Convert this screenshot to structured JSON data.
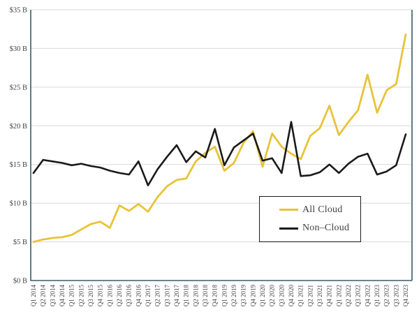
{
  "chart_data": {
    "type": "line",
    "title": "",
    "x": [
      "Q1 2014",
      "Q2 2014",
      "Q3 2014",
      "Q4 2014",
      "Q1 2015",
      "Q2 2015",
      "Q3 2015",
      "Q4 2015",
      "Q1 2016",
      "Q2 2016",
      "Q3 2016",
      "Q4 2016",
      "Q1 2017",
      "Q2 2017",
      "Q3 2017",
      "Q4 2017",
      "Q1 2018",
      "Q2 2018",
      "Q3 2018",
      "Q4 2018",
      "Q1 2019",
      "Q2 2019",
      "Q3 2019",
      "Q4 2019",
      "Q1 2020",
      "Q2 2020",
      "Q3 2020",
      "Q4 2020",
      "Q1 2021",
      "Q2 2021",
      "Q3 2021",
      "Q4 2021",
      "Q1 2022",
      "Q2 2022",
      "Q3 2022",
      "Q4 2022",
      "Q1 2023",
      "Q2 2023",
      "Q3 2023",
      "Q4 2023"
    ],
    "series": [
      {
        "name": "All Cloud",
        "color": "#e8c338",
        "values": [
          5.0,
          5.3,
          5.5,
          5.6,
          5.9,
          6.6,
          7.3,
          7.6,
          6.8,
          9.7,
          9.0,
          9.9,
          8.9,
          10.8,
          12.2,
          13.0,
          13.2,
          15.4,
          16.5,
          17.3,
          14.2,
          15.2,
          17.8,
          19.3,
          14.7,
          19.0,
          17.3,
          16.4,
          15.7,
          18.7,
          19.7,
          22.6,
          18.8,
          20.5,
          22.0,
          26.6,
          21.7,
          24.6,
          25.4,
          31.8
        ]
      },
      {
        "name": "Non–Cloud",
        "color": "#1a1a1a",
        "values": [
          13.9,
          15.6,
          15.4,
          15.2,
          14.9,
          15.1,
          14.8,
          14.6,
          14.2,
          13.9,
          13.7,
          15.4,
          12.3,
          14.4,
          16.0,
          17.5,
          15.3,
          16.7,
          15.9,
          19.6,
          14.9,
          17.2,
          18.1,
          19.0,
          15.5,
          15.8,
          13.9,
          20.5,
          13.5,
          13.6,
          14.0,
          15.0,
          13.9,
          15.1,
          16.0,
          16.4,
          13.7,
          14.1,
          14.9,
          18.9
        ]
      }
    ],
    "xlabel": "",
    "ylabel": "",
    "ylim": [
      0,
      35
    ],
    "ytick_step": 5,
    "y_ticks": [
      "$0 B",
      "$5 B",
      "$10 B",
      "$15 B",
      "$20 B",
      "$25 B",
      "$30 B",
      "$35 B"
    ],
    "grid": true,
    "legend_position": "inside-right"
  },
  "legend": {
    "items": [
      {
        "label": "All Cloud"
      },
      {
        "label": "Non–Cloud"
      }
    ]
  },
  "colors": {
    "axis": "#3a5a6a",
    "grid": "#d9d9d9",
    "tick_text": "#3f3f3f",
    "background": "#ffffff"
  }
}
